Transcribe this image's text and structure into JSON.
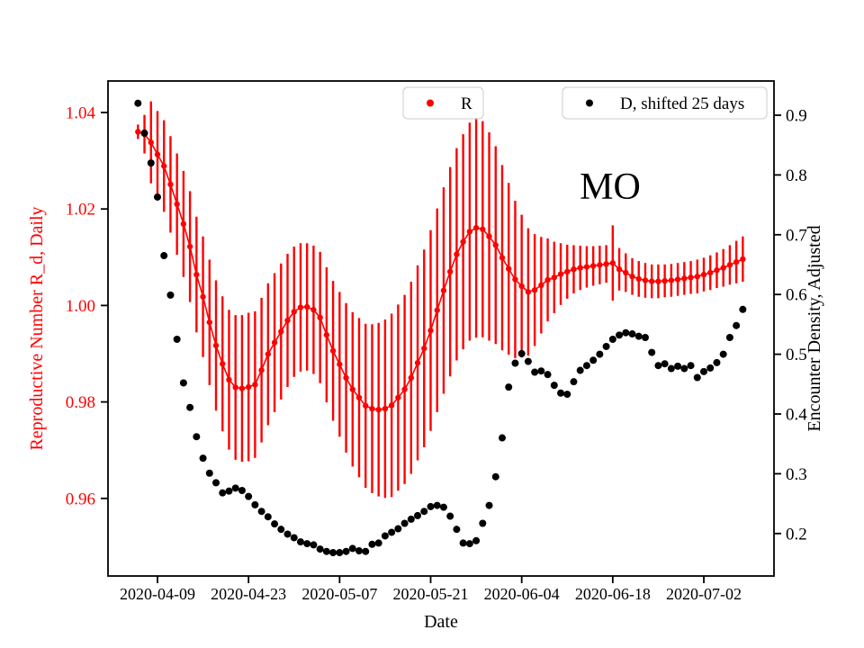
{
  "figure": {
    "background": "#ffffff",
    "annotation": "MO"
  },
  "chart_data": {
    "type": "scatter",
    "annotation": "MO",
    "grid": false,
    "xlabel": "Date",
    "x_tick_labels": [
      "2020-04-09",
      "2020-04-23",
      "2020-05-07",
      "2020-05-21",
      "2020-06-04",
      "2020-06-18",
      "2020-07-02"
    ],
    "left_axis": {
      "label": "Reproductive Number R_d, Daily",
      "color": "#ff0000",
      "tick_labels": [
        "1.04",
        "1.02",
        "1.00",
        "0.98",
        "0.96"
      ],
      "tick_values": [
        1.04,
        1.02,
        1.0,
        0.98,
        0.96
      ],
      "range": [
        0.944,
        1.0466
      ]
    },
    "right_axis": {
      "label": "Encounter Density, Adjusted",
      "color": "#000000",
      "tick_labels": [
        "0.9",
        "0.8",
        "0.7",
        "0.6",
        "0.5",
        "0.4",
        "0.3",
        "0.2"
      ],
      "tick_values": [
        0.9,
        0.8,
        0.7,
        0.6,
        0.5,
        0.4,
        0.3,
        0.2
      ],
      "range": [
        0.129,
        0.957
      ]
    },
    "legend": [
      {
        "label": "R",
        "color": "#ff0000"
      },
      {
        "label": "D, shifted 25 days",
        "color": "#000000"
      }
    ],
    "dates": [
      "2020-04-06",
      "2020-04-07",
      "2020-04-08",
      "2020-04-09",
      "2020-04-10",
      "2020-04-11",
      "2020-04-12",
      "2020-04-13",
      "2020-04-14",
      "2020-04-15",
      "2020-04-16",
      "2020-04-17",
      "2020-04-18",
      "2020-04-19",
      "2020-04-20",
      "2020-04-21",
      "2020-04-22",
      "2020-04-23",
      "2020-04-24",
      "2020-04-25",
      "2020-04-26",
      "2020-04-27",
      "2020-04-28",
      "2020-04-29",
      "2020-04-30",
      "2020-05-01",
      "2020-05-02",
      "2020-05-03",
      "2020-05-04",
      "2020-05-05",
      "2020-05-06",
      "2020-05-07",
      "2020-05-08",
      "2020-05-09",
      "2020-05-10",
      "2020-05-11",
      "2020-05-12",
      "2020-05-13",
      "2020-05-14",
      "2020-05-15",
      "2020-05-16",
      "2020-05-17",
      "2020-05-18",
      "2020-05-19",
      "2020-05-20",
      "2020-05-21",
      "2020-05-22",
      "2020-05-23",
      "2020-05-24",
      "2020-05-25",
      "2020-05-26",
      "2020-05-27",
      "2020-05-28",
      "2020-05-29",
      "2020-05-30",
      "2020-05-31",
      "2020-06-01",
      "2020-06-02",
      "2020-06-03",
      "2020-06-04",
      "2020-06-05",
      "2020-06-06",
      "2020-06-07",
      "2020-06-08",
      "2020-06-09",
      "2020-06-10",
      "2020-06-11",
      "2020-06-12",
      "2020-06-13",
      "2020-06-14",
      "2020-06-15",
      "2020-06-16",
      "2020-06-17",
      "2020-06-18",
      "2020-06-19",
      "2020-06-20",
      "2020-06-21",
      "2020-06-22",
      "2020-06-23",
      "2020-06-24",
      "2020-06-25",
      "2020-06-26",
      "2020-06-27",
      "2020-06-28",
      "2020-06-29",
      "2020-06-30",
      "2020-07-01",
      "2020-07-02",
      "2020-07-03",
      "2020-07-04",
      "2020-07-05",
      "2020-07-06",
      "2020-07-07",
      "2020-07-08"
    ],
    "series": [
      {
        "name": "R",
        "axis": "left",
        "color": "#ff0000",
        "style": "dots+line+errorbars",
        "values": [
          1.036,
          1.0355,
          1.0338,
          1.0313,
          1.0289,
          1.0251,
          1.021,
          1.0169,
          1.0122,
          1.0064,
          1.0018,
          0.9965,
          0.9917,
          0.9879,
          0.9846,
          0.983,
          0.9828,
          0.9831,
          0.9836,
          0.9866,
          0.9899,
          0.9923,
          0.9946,
          0.9969,
          0.9987,
          0.9996,
          0.9997,
          0.9991,
          0.9975,
          0.9939,
          0.9906,
          0.9878,
          0.985,
          0.9826,
          0.9809,
          0.9792,
          0.9786,
          0.9784,
          0.9786,
          0.9793,
          0.9809,
          0.9826,
          0.985,
          0.9881,
          0.9911,
          0.9948,
          0.999,
          1.0031,
          1.007,
          1.0106,
          1.0132,
          1.0153,
          1.0161,
          1.0158,
          1.0143,
          1.0125,
          1.0099,
          1.0076,
          1.0054,
          1.004,
          1.0028,
          1.0032,
          1.0042,
          1.0053,
          1.0058,
          1.0065,
          1.007,
          1.0075,
          1.0078,
          1.008,
          1.0082,
          1.0084,
          1.0086,
          1.0088,
          1.0075,
          1.0068,
          1.006,
          1.0055,
          1.0052,
          1.005,
          1.005,
          1.0051,
          1.0052,
          1.0054,
          1.0056,
          1.0058,
          1.006,
          1.0064,
          1.0068,
          1.0073,
          1.0078,
          1.0084,
          1.009,
          1.0096
        ],
        "errors": [
          0.0015,
          0.004,
          0.0085,
          0.009,
          0.0095,
          0.01,
          0.0105,
          0.011,
          0.0115,
          0.012,
          0.0125,
          0.013,
          0.0135,
          0.014,
          0.0145,
          0.015,
          0.0152,
          0.0154,
          0.0152,
          0.015,
          0.0147,
          0.0144,
          0.0141,
          0.0138,
          0.0135,
          0.0133,
          0.0132,
          0.0133,
          0.0136,
          0.014,
          0.0145,
          0.015,
          0.0155,
          0.016,
          0.0165,
          0.017,
          0.0175,
          0.018,
          0.0185,
          0.019,
          0.0193,
          0.0196,
          0.0199,
          0.0202,
          0.0205,
          0.0208,
          0.0211,
          0.0214,
          0.0217,
          0.022,
          0.0223,
          0.0226,
          0.0228,
          0.0224,
          0.0216,
          0.0205,
          0.0192,
          0.0178,
          0.0163,
          0.0148,
          0.0132,
          0.0116,
          0.01,
          0.0086,
          0.0074,
          0.0064,
          0.0056,
          0.005,
          0.0046,
          0.0043,
          0.0041,
          0.004,
          0.0039,
          0.0078,
          0.0044,
          0.004,
          0.0038,
          0.0037,
          0.0036,
          0.0035,
          0.0035,
          0.0034,
          0.0034,
          0.0034,
          0.0034,
          0.0034,
          0.0035,
          0.0035,
          0.0036,
          0.0037,
          0.0039,
          0.0041,
          0.0044,
          0.0047
        ]
      },
      {
        "name": "D, shifted 25 days",
        "axis": "right",
        "color": "#000000",
        "style": "dots",
        "values": [
          0.92,
          0.87,
          0.82,
          0.763,
          0.665,
          0.599,
          0.525,
          0.452,
          0.411,
          0.362,
          0.326,
          0.301,
          0.285,
          0.268,
          0.271,
          0.276,
          0.272,
          0.262,
          0.248,
          0.237,
          0.228,
          0.216,
          0.207,
          0.199,
          0.193,
          0.186,
          0.183,
          0.181,
          0.174,
          0.17,
          0.168,
          0.168,
          0.17,
          0.175,
          0.171,
          0.17,
          0.182,
          0.184,
          0.196,
          0.202,
          0.208,
          0.217,
          0.224,
          0.23,
          0.237,
          0.245,
          0.247,
          0.244,
          0.229,
          0.207,
          0.184,
          0.183,
          0.188,
          0.217,
          0.247,
          0.295,
          0.36,
          0.445,
          0.485,
          0.501,
          0.488,
          0.47,
          0.472,
          0.466,
          0.448,
          0.435,
          0.433,
          0.454,
          0.473,
          0.481,
          0.49,
          0.5,
          0.513,
          0.525,
          0.532,
          0.536,
          0.534,
          0.53,
          0.528,
          0.503,
          0.481,
          0.484,
          0.476,
          0.48,
          0.476,
          0.481,
          0.461,
          0.471,
          0.477,
          0.486,
          0.5,
          0.528,
          0.548,
          0.575
        ]
      }
    ]
  }
}
